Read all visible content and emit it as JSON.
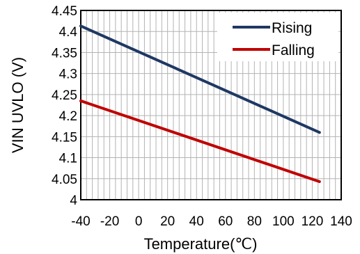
{
  "chart_data": {
    "type": "line",
    "title": "",
    "xlabel": "Temperature(℃)",
    "ylabel": "VIN UVLO (V)",
    "xlim": [
      -40,
      140
    ],
    "ylim": [
      4,
      4.45
    ],
    "x_ticks": [
      -40,
      -20,
      0,
      20,
      40,
      60,
      80,
      100,
      120,
      140
    ],
    "y_ticks": [
      4,
      4.05,
      4.1,
      4.15,
      4.2,
      4.25,
      4.3,
      4.35,
      4.4,
      4.45
    ],
    "x_tick_labels": [
      "-40",
      "-20",
      "0",
      "20",
      "40",
      "60",
      "80",
      "100",
      "120",
      "140"
    ],
    "y_tick_labels": [
      "4",
      "4.05",
      "4.1",
      "4.15",
      "4.2",
      "4.25",
      "4.3",
      "4.35",
      "4.4",
      "4.45"
    ],
    "grid": true,
    "legend_position": "top-right",
    "series": [
      {
        "name": "Rising",
        "color": "#1f3864",
        "x": [
          -40,
          125
        ],
        "y": [
          4.413,
          4.16
        ]
      },
      {
        "name": "Falling",
        "color": "#c00000",
        "x": [
          -40,
          125
        ],
        "y": [
          4.235,
          4.043
        ]
      }
    ]
  }
}
